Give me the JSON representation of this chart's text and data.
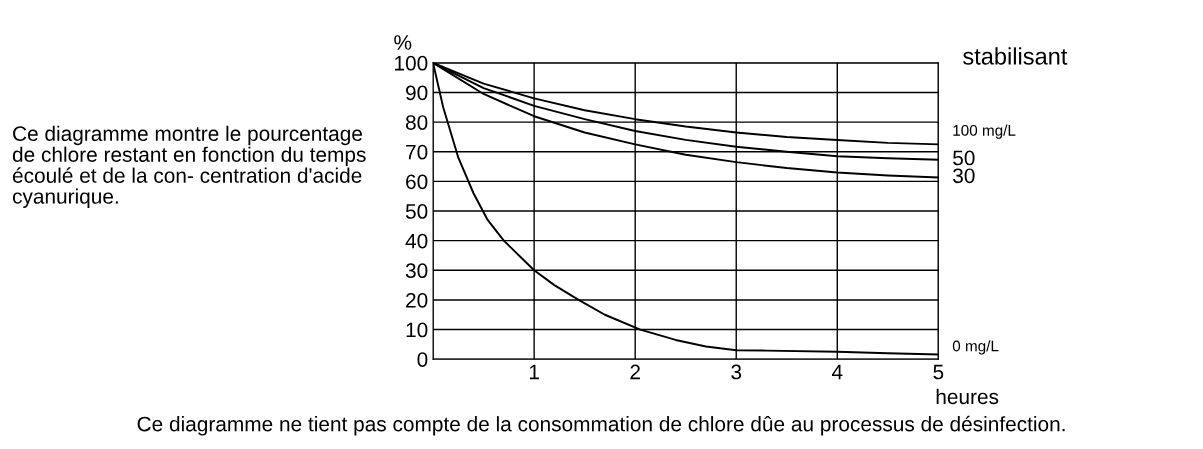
{
  "chart_data": {
    "type": "line",
    "xlabel": "heures",
    "ylabel": "%",
    "xlim": [
      0,
      5
    ],
    "ylim": [
      0,
      100
    ],
    "xticks": [
      {
        "value": 0,
        "label": null
      },
      1,
      2,
      3,
      4,
      5
    ],
    "yticks": [
      0,
      10,
      20,
      30,
      40,
      50,
      60,
      70,
      80,
      90,
      100
    ],
    "grid": true,
    "legend": false,
    "marker": "none",
    "line_style": "solid",
    "annotations": [
      "Ce diagramme montre le pourcentage\nde chlore restant en fonction du temps\nécoulé et de la con- centration d'acide\ncyanurique.",
      "stabilisant",
      "Ce diagramme ne tient pas compte de la consommation de chlore dûe au processus de désinfection."
    ],
    "series": [
      {
        "name": "100 mg/L",
        "color": "#000000",
        "x": [
          0,
          0.5,
          1,
          1.5,
          2,
          2.5,
          3,
          3.5,
          4,
          4.5,
          5
        ],
        "values": [
          100,
          93,
          88,
          84,
          81,
          78.5,
          76.5,
          75,
          74,
          73,
          72.5
        ]
      },
      {
        "name": "50",
        "color": "#000000",
        "x": [
          0,
          0.5,
          1,
          1.5,
          2,
          2.5,
          3,
          3.5,
          4,
          4.5,
          5
        ],
        "values": [
          100,
          91.5,
          85.5,
          81,
          77,
          74,
          71.7,
          70,
          68.5,
          67.8,
          67.3
        ]
      },
      {
        "name": "30",
        "color": "#000000",
        "x": [
          0,
          0.5,
          1,
          1.5,
          2,
          2.5,
          3,
          3.5,
          4,
          4.5,
          5
        ],
        "values": [
          100,
          89.5,
          82,
          76.5,
          72.5,
          69,
          66.5,
          64.5,
          63,
          62,
          61.3
        ]
      },
      {
        "name": "0 mg/L",
        "color": "#000000",
        "x": [
          0,
          0.1,
          0.25,
          0.4,
          0.54,
          0.7,
          0.85,
          1,
          1.2,
          1.44,
          1.7,
          2.05,
          2.4,
          2.7,
          3,
          3.3,
          4,
          4.5,
          5
        ],
        "values": [
          100,
          85,
          68,
          56,
          47,
          40,
          35,
          30,
          25,
          20,
          15,
          10,
          6.5,
          4.3,
          3,
          2.9,
          2.5,
          2,
          1.6
        ]
      }
    ]
  }
}
